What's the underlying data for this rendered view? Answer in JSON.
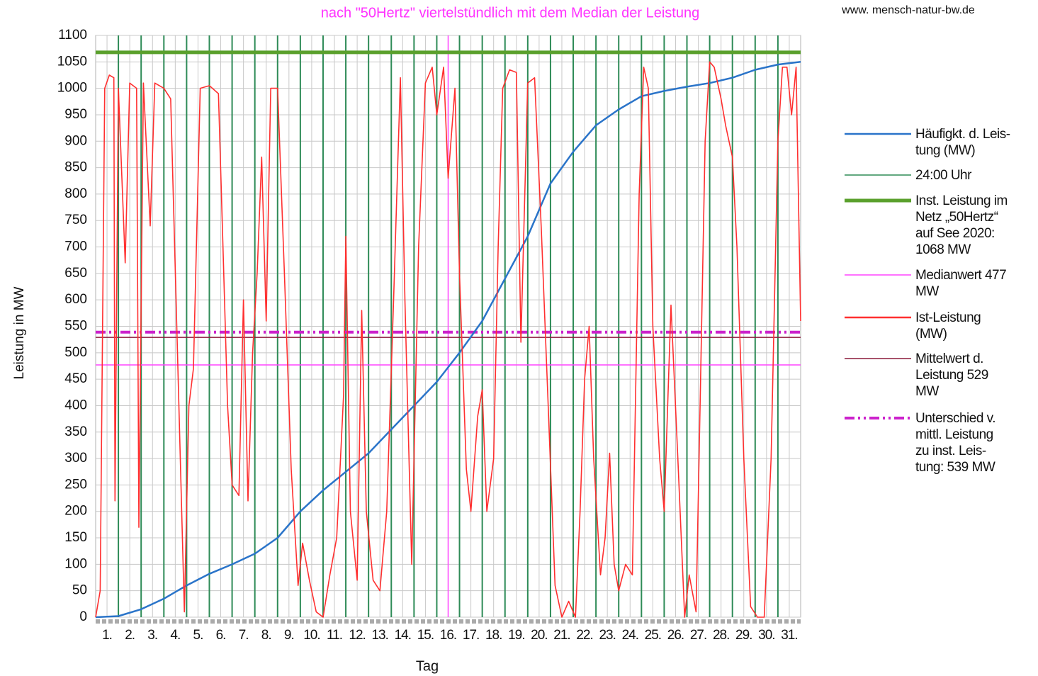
{
  "chart_data": {
    "type": "line",
    "title": "nach \"50Hertz\" viertelstündlich mit dem Median der Leistung",
    "source": "www. mensch-natur-bw.de",
    "y_label": "Leistung in MW",
    "x_label": "Tag",
    "xlim": [
      0,
      31
    ],
    "ylim": [
      0,
      1100
    ],
    "yticks": [
      0,
      50,
      100,
      150,
      200,
      250,
      300,
      350,
      400,
      450,
      500,
      550,
      600,
      650,
      700,
      750,
      800,
      850,
      900,
      950,
      1000,
      1050,
      1100
    ],
    "xticks": [
      {
        "value": 0.5,
        "label": "1."
      },
      {
        "value": 1.5,
        "label": "2."
      },
      {
        "value": 2.5,
        "label": "3."
      },
      {
        "value": 3.5,
        "label": "4."
      },
      {
        "value": 4.5,
        "label": "5."
      },
      {
        "value": 5.5,
        "label": "6."
      },
      {
        "value": 6.5,
        "label": "7."
      },
      {
        "value": 7.5,
        "label": "8."
      },
      {
        "value": 8.5,
        "label": "9."
      },
      {
        "value": 9.5,
        "label": "10."
      },
      {
        "value": 10.5,
        "label": "11."
      },
      {
        "value": 11.5,
        "label": "12."
      },
      {
        "value": 12.5,
        "label": "13."
      },
      {
        "value": 13.5,
        "label": "14."
      },
      {
        "value": 14.5,
        "label": "15."
      },
      {
        "value": 15.5,
        "label": "16."
      },
      {
        "value": 16.5,
        "label": "17."
      },
      {
        "value": 17.5,
        "label": "18."
      },
      {
        "value": 18.5,
        "label": "19."
      },
      {
        "value": 19.5,
        "label": "20."
      },
      {
        "value": 20.5,
        "label": "21."
      },
      {
        "value": 21.5,
        "label": "22."
      },
      {
        "value": 22.5,
        "label": "23."
      },
      {
        "value": 23.5,
        "label": "24."
      },
      {
        "value": 24.5,
        "label": "25."
      },
      {
        "value": 25.5,
        "label": "26."
      },
      {
        "value": 26.5,
        "label": "27."
      },
      {
        "value": 27.5,
        "label": "28."
      },
      {
        "value": 28.5,
        "label": "29."
      },
      {
        "value": 29.5,
        "label": "30."
      },
      {
        "value": 30.5,
        "label": "31."
      }
    ],
    "grid": true,
    "series": [
      {
        "name": "Häufigkt. d. Leis-\ntung (MW)",
        "type": "curve",
        "color": "#2a74c9",
        "x": [
          0,
          1,
          2,
          3,
          4,
          5,
          6,
          7,
          8,
          9,
          10,
          11,
          12,
          13,
          14,
          15,
          16,
          17,
          18,
          19,
          20,
          21,
          22,
          23,
          24,
          25,
          26,
          27,
          28,
          29,
          30,
          31
        ],
        "values": [
          0,
          2,
          15,
          35,
          60,
          82,
          100,
          120,
          150,
          200,
          240,
          275,
          310,
          355,
          400,
          445,
          500,
          560,
          640,
          720,
          820,
          880,
          930,
          960,
          985,
          995,
          1003,
          1010,
          1020,
          1035,
          1045,
          1050
        ]
      },
      {
        "name": "24:00 Uhr",
        "type": "vlines",
        "color": "#2e8b57",
        "x": [
          1,
          2,
          3,
          4,
          5,
          6,
          7,
          8,
          9,
          10,
          11,
          12,
          13,
          14,
          15,
          16,
          17,
          18,
          19,
          20,
          21,
          22,
          23,
          24,
          25,
          26,
          27,
          28,
          29,
          30
        ]
      },
      {
        "name": "Inst. Leistung im\nNetz „50Hertz“\nauf See 2020:\n1068 MW",
        "type": "hline",
        "color": "#5aa02c",
        "value": 1068
      },
      {
        "name": "Medianwert 477\nMW",
        "type": "hline",
        "color": "#ff44ff",
        "value": 477,
        "vline_x": 15.5
      },
      {
        "name": "Ist-Leistung\n(MW)",
        "type": "curve",
        "color": "#ff3030",
        "x": [
          0,
          0.2,
          0.4,
          0.6,
          0.8,
          0.85,
          1.0,
          1.3,
          1.5,
          1.8,
          1.9,
          2.1,
          2.4,
          2.6,
          3.0,
          3.3,
          3.6,
          3.9,
          4.1,
          4.3,
          4.6,
          5.0,
          5.4,
          5.6,
          5.8,
          6.0,
          6.3,
          6.5,
          6.7,
          6.9,
          7.1,
          7.3,
          7.5,
          7.7,
          8.0,
          8.3,
          8.6,
          8.9,
          9.1,
          9.4,
          9.7,
          10.0,
          10.3,
          10.6,
          10.9,
          11.0,
          11.2,
          11.5,
          11.7,
          11.9,
          12.2,
          12.5,
          12.8,
          13.1,
          13.4,
          13.6,
          13.9,
          14.2,
          14.5,
          14.8,
          15.0,
          15.3,
          15.5,
          15.8,
          16.0,
          16.3,
          16.5,
          16.8,
          17.0,
          17.2,
          17.5,
          17.7,
          17.9,
          18.2,
          18.5,
          18.7,
          19.0,
          19.3,
          19.6,
          19.9,
          20.2,
          20.5,
          20.8,
          21.1,
          21.3,
          21.5,
          21.7,
          21.9,
          22.2,
          22.4,
          22.6,
          22.8,
          23.0,
          23.3,
          23.6,
          23.9,
          24.1,
          24.3,
          24.5,
          24.8,
          25.0,
          25.3,
          25.6,
          25.9,
          26.1,
          26.4,
          26.6,
          26.8,
          27.0,
          27.2,
          27.5,
          27.7,
          28.0,
          28.2,
          28.5,
          28.8,
          29.1,
          29.4,
          29.7,
          30.0,
          30.2,
          30.4,
          30.6,
          30.8,
          31.0
        ],
        "values": [
          0,
          50,
          1000,
          1025,
          1020,
          220,
          1000,
          670,
          1010,
          1000,
          170,
          1010,
          740,
          1010,
          1000,
          980,
          500,
          10,
          400,
          470,
          1000,
          1005,
          990,
          700,
          400,
          250,
          230,
          600,
          220,
          500,
          650,
          870,
          560,
          1000,
          1000,
          650,
          280,
          60,
          140,
          70,
          10,
          0,
          80,
          150,
          420,
          720,
          200,
          70,
          580,
          200,
          70,
          50,
          200,
          600,
          1020,
          600,
          100,
          700,
          1010,
          1040,
          950,
          1040,
          830,
          1000,
          650,
          280,
          200,
          380,
          430,
          200,
          300,
          700,
          1000,
          1035,
          1030,
          520,
          1010,
          1020,
          730,
          400,
          60,
          0,
          30,
          0,
          200,
          450,
          550,
          300,
          80,
          150,
          310,
          100,
          50,
          100,
          80,
          800,
          1040,
          1000,
          550,
          300,
          200,
          590,
          300,
          0,
          80,
          10,
          450,
          900,
          1050,
          1040,
          980,
          930,
          870,
          700,
          300,
          20,
          0,
          0,
          300,
          900,
          1040,
          1040,
          950,
          1040,
          560
        ]
      },
      {
        "name": "Mittelwert d.\nLeistung 529\nMW",
        "type": "hline",
        "color": "#8b1a3a",
        "value": 529
      },
      {
        "name": "Unterschied v.\nmittl. Leistung\nzu inst. Leis-\ntung: 539 MW",
        "type": "hline",
        "color": "#cc22cc",
        "value": 539,
        "dash": true
      }
    ]
  }
}
